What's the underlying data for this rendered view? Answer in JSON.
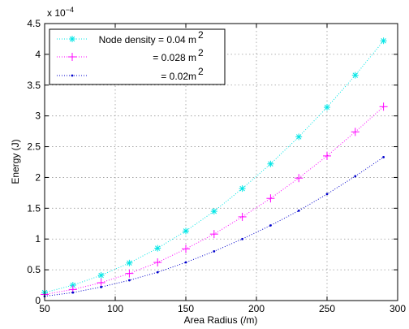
{
  "chart_data": {
    "type": "scatter",
    "xlabel": "Area Radius (/m)",
    "ylabel": "Energy (J)",
    "y_exponent_base": "x 10",
    "y_exponent_power": "−4",
    "xlim": [
      50,
      300
    ],
    "ylim": [
      0,
      4.5
    ],
    "xticks": [
      50,
      100,
      150,
      200,
      250,
      300
    ],
    "yticks": [
      0,
      0.5,
      1,
      1.5,
      2,
      2.5,
      3,
      3.5,
      4,
      4.5
    ],
    "xtick_labels": [
      "50",
      "100",
      "150",
      "200",
      "250",
      "300"
    ],
    "ytick_labels": [
      "0",
      "0.5",
      "1",
      "1.5",
      "2",
      "2.5",
      "3",
      "3.5",
      "4",
      "4.5"
    ],
    "grid": true,
    "legend_position": "top-left",
    "x": [
      50,
      70,
      90,
      110,
      130,
      150,
      170,
      190,
      210,
      230,
      250,
      270,
      290
    ],
    "series": [
      {
        "name": "Node density = 0.04 m",
        "name_sup": "2",
        "marker": "asterisk",
        "color": "#00e5e5",
        "values": [
          0.13,
          0.25,
          0.41,
          0.61,
          0.85,
          1.13,
          1.45,
          1.82,
          2.22,
          2.66,
          3.14,
          3.66,
          4.22
        ]
      },
      {
        "name": "= 0.028 m",
        "name_sup": "2",
        "marker": "plus",
        "color": "#ff00ff",
        "values": [
          0.1,
          0.18,
          0.29,
          0.44,
          0.62,
          0.84,
          1.08,
          1.36,
          1.66,
          1.99,
          2.35,
          2.74,
          3.15
        ]
      },
      {
        "name": "= 0.02m",
        "name_sup": "2",
        "marker": "dot",
        "color": "#0000cc",
        "values": [
          0.07,
          0.13,
          0.22,
          0.33,
          0.46,
          0.62,
          0.8,
          1.0,
          1.22,
          1.46,
          1.73,
          2.02,
          2.33
        ]
      }
    ]
  }
}
